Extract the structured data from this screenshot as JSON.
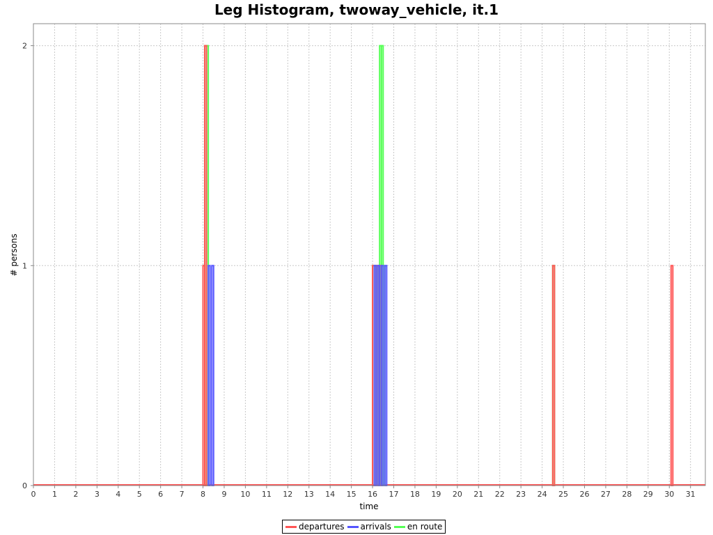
{
  "chart_data": {
    "type": "bar",
    "title": "Leg Histogram, twoway_vehicle, it.1",
    "xlabel": "time",
    "ylabel": "# persons",
    "xlim": [
      0,
      31.7
    ],
    "ylim": [
      0,
      2.1
    ],
    "x_ticks": [
      0,
      1,
      2,
      3,
      4,
      5,
      6,
      7,
      8,
      9,
      10,
      11,
      12,
      13,
      14,
      15,
      16,
      17,
      18,
      19,
      20,
      21,
      22,
      23,
      24,
      25,
      26,
      27,
      28,
      29,
      30,
      31
    ],
    "y_ticks": [
      0,
      1,
      2
    ],
    "grid": true,
    "legend_position": "bottom",
    "bin_width": 0.0833,
    "series": [
      {
        "name": "departures",
        "color": "#ff5555",
        "bars": [
          {
            "x": 8.0,
            "y": 1
          },
          {
            "x": 8.083,
            "y": 2
          },
          {
            "x": 16.0,
            "y": 1
          },
          {
            "x": 16.167,
            "y": 1
          },
          {
            "x": 16.333,
            "y": 1
          },
          {
            "x": 24.5,
            "y": 1
          },
          {
            "x": 30.083,
            "y": 1
          }
        ]
      },
      {
        "name": "arrivals",
        "color": "#5555ff",
        "bars": [
          {
            "x": 8.25,
            "y": 1
          },
          {
            "x": 8.417,
            "y": 1
          },
          {
            "x": 16.083,
            "y": 1
          },
          {
            "x": 16.25,
            "y": 1
          },
          {
            "x": 16.417,
            "y": 1
          },
          {
            "x": 16.583,
            "y": 1
          }
        ]
      },
      {
        "name": "en route",
        "color": "#55ff55",
        "bars": [
          {
            "x": 8.0,
            "y": 1
          },
          {
            "x": 8.083,
            "y": 2
          },
          {
            "x": 8.167,
            "y": 2
          },
          {
            "x": 16.0,
            "y": 1
          },
          {
            "x": 16.083,
            "y": 1
          },
          {
            "x": 16.167,
            "y": 1
          },
          {
            "x": 16.25,
            "y": 1
          },
          {
            "x": 16.333,
            "y": 2
          },
          {
            "x": 16.417,
            "y": 2
          },
          {
            "x": 16.5,
            "y": 1
          },
          {
            "x": 24.5,
            "y": 1
          }
        ]
      }
    ]
  }
}
